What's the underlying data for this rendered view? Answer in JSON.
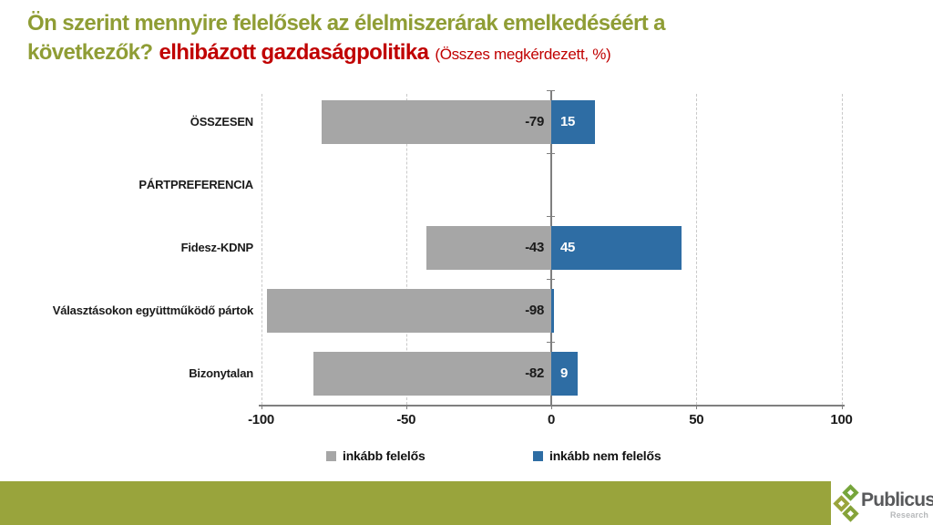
{
  "title": {
    "line1": "Ön szerint mennyire felelősek az élelmiszerárak emelkedéséért a",
    "line2_green": "következők?",
    "line2_red": "elhibázott gazdaságpolitika",
    "note": "(Összes megkérdezett, %)"
  },
  "chart_data": {
    "type": "bar",
    "orientation": "horizontal",
    "diverging": true,
    "title": "Ön szerint mennyire felelősek az élelmiszerárak emelkedéséért a következők? elhibázott gazdaságpolitika (Összes megkérdezett, %)",
    "categories": [
      "ÖSSZESEN",
      "PÁRTPREFERENCIA",
      "Fidesz-KDNP",
      "Választásokon együttműködő pártok",
      "Bizonytalan"
    ],
    "series": [
      {
        "name": "inkább felelős",
        "color": "#A6A6A6",
        "values": [
          -79,
          null,
          -43,
          -98,
          -82
        ]
      },
      {
        "name": "inkább nem felelős",
        "color": "#2E6DA4",
        "values": [
          15,
          null,
          45,
          1,
          9
        ]
      }
    ],
    "xlim": [
      -100,
      100
    ],
    "x_ticks": [
      -100,
      -50,
      0,
      50,
      100
    ],
    "gridlines": "vertical-dashed",
    "legend_position": "bottom",
    "value_label_min": 3
  },
  "colors": {
    "title_green": "#8F9D35",
    "title_red": "#C00000",
    "footer_bar": "#99A43C",
    "axis": "#7F7F7F",
    "gridline": "#C9C9C9",
    "text": "#1A1A1A"
  },
  "footer": {
    "brand": "Publicus",
    "brand_sub": "Research"
  }
}
